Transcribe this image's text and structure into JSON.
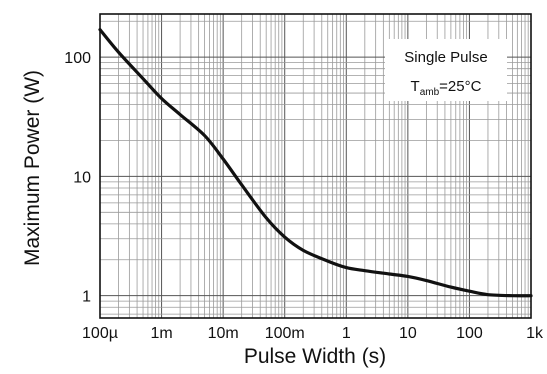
{
  "chart_data": {
    "type": "line",
    "xlabel": "Pulse Width (s)",
    "ylabel": "Maximum Power (W)",
    "x_scale": "log",
    "y_scale": "log",
    "xlim": [
      0.0001,
      1000
    ],
    "ylim": [
      0.65,
      230
    ],
    "grid": true,
    "x_ticks": [
      {
        "value": 0.0001,
        "label": "100µ"
      },
      {
        "value": 0.001,
        "label": "1m"
      },
      {
        "value": 0.01,
        "label": "10m"
      },
      {
        "value": 0.1,
        "label": "100m"
      },
      {
        "value": 1,
        "label": "1"
      },
      {
        "value": 10,
        "label": "10"
      },
      {
        "value": 100,
        "label": "100"
      },
      {
        "value": 1000,
        "label": "1k"
      }
    ],
    "y_ticks": [
      {
        "value": 1,
        "label": "1"
      },
      {
        "value": 10,
        "label": "10"
      },
      {
        "value": 100,
        "label": "100"
      }
    ],
    "series": [
      {
        "x": [
          0.0001,
          0.0002,
          0.0005,
          0.001,
          0.002,
          0.005,
          0.01,
          0.02,
          0.05,
          0.1,
          0.2,
          0.5,
          1,
          2,
          5,
          10,
          20,
          50,
          100,
          200,
          500,
          1000
        ],
        "y": [
          170,
          110,
          66,
          45,
          33,
          22,
          14,
          8.5,
          4.5,
          3.1,
          2.4,
          1.95,
          1.72,
          1.62,
          1.52,
          1.45,
          1.34,
          1.18,
          1.09,
          1.02,
          1.0,
          1.0
        ]
      }
    ],
    "annotation": {
      "line1": "Single Pulse",
      "line2_main": "T",
      "line2_sub": "amb",
      "line2_rest": "=25°C",
      "position": "top-right"
    }
  }
}
